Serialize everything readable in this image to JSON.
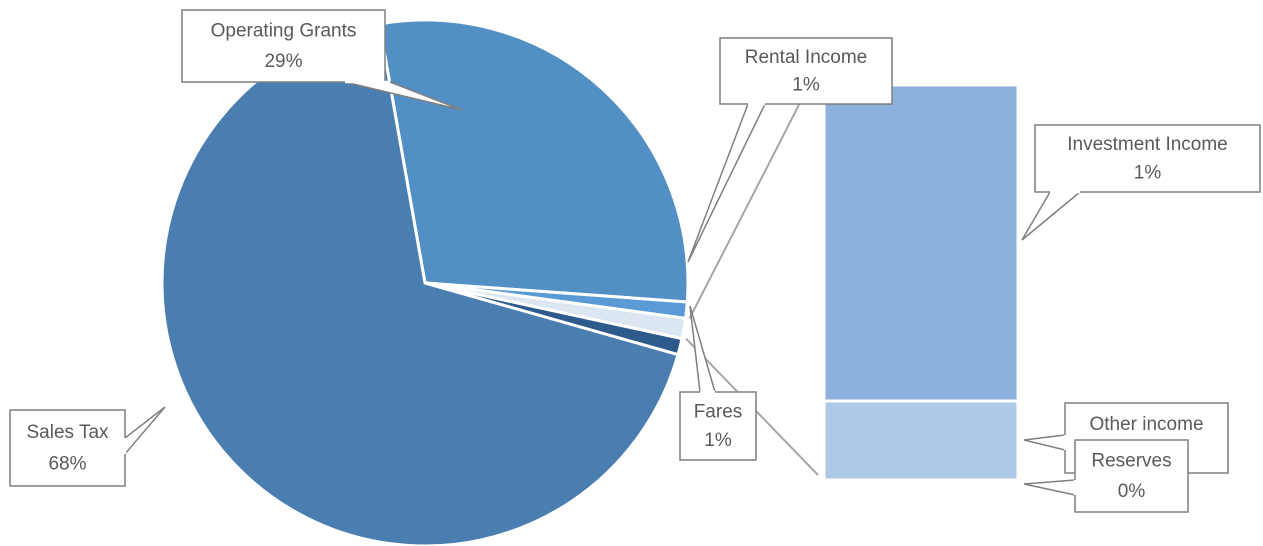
{
  "chart_data": {
    "type": "bar-of-pie",
    "categories": [
      "Sales Tax",
      "Operating Grants",
      "Rental Income",
      "Fares",
      "Investment Income",
      "Other income",
      "Reserves"
    ],
    "values": [
      68,
      29,
      1,
      1,
      1,
      0.25,
      0
    ],
    "value_labels": [
      "68%",
      "29%",
      "1%",
      "1%",
      "1%",
      null,
      "0%"
    ],
    "colors": [
      "#4a7eb0",
      "#528fc4",
      "#5b9bd5",
      "#2e5b8c",
      "#8db1dd",
      "#aec8e7",
      "#c9daf0"
    ],
    "bar_items": 3
  }
}
